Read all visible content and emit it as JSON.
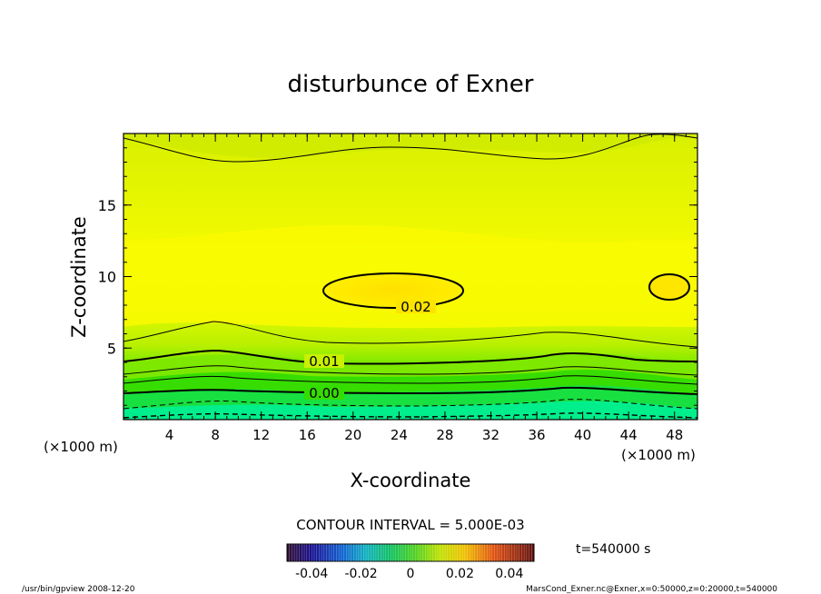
{
  "chart_data": {
    "type": "contour",
    "title": "disturbunce of Exner",
    "xlabel": "X-coordinate",
    "ylabel": "Z-coordinate",
    "x_unit": "(×1000 m)",
    "y_unit": "(×1000 m)",
    "xlim": [
      0,
      50
    ],
    "ylim": [
      0,
      20
    ],
    "x_ticks": [
      4,
      8,
      12,
      16,
      20,
      24,
      28,
      32,
      36,
      40,
      44,
      48
    ],
    "y_ticks": [
      5,
      10,
      15
    ],
    "contour_interval_text": "CONTOUR INTERVAL = 5.000E-03",
    "contour_labels": [
      {
        "text": "0.02",
        "x": 23.8,
        "z": 7.8
      },
      {
        "text": "0.01",
        "x": 17.3,
        "z": 4.2
      },
      {
        "text": "0.00",
        "x": 17.3,
        "z": 2.0
      }
    ],
    "colorbar": {
      "ticks": [
        "-0.04",
        "-0.02",
        "0",
        "0.02",
        "0.04"
      ],
      "tick_values": [
        -0.04,
        -0.02,
        0,
        0.02,
        0.04
      ],
      "range": [
        -0.05,
        0.05
      ]
    },
    "time_label": "t=540000 s"
  },
  "footer": {
    "left": "/usr/bin/gpview   2008-12-20",
    "right": "MarsCond_Exner.nc@Exner,x=0:50000,z=0:20000,t=540000"
  }
}
